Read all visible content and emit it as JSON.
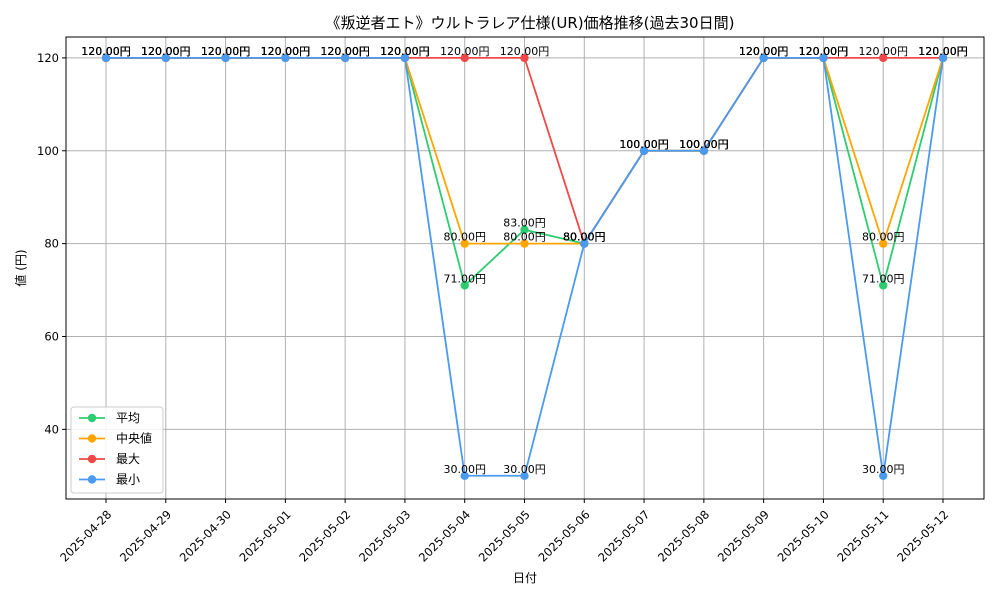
{
  "chart_data": {
    "type": "line",
    "title": "《叛逆者エト》ウルトラレア仕様(UR)価格推移(過去30日間)",
    "xlabel": "日付",
    "ylabel": "値 (円)",
    "ylim": [
      25,
      124.5
    ],
    "yticks": [
      40,
      60,
      80,
      100,
      120
    ],
    "grid": true,
    "legend_position": "lower-left",
    "label_suffix": "円",
    "categories": [
      "2025-04-28",
      "2025-04-29",
      "2025-04-30",
      "2025-05-01",
      "2025-05-02",
      "2025-05-03",
      "2025-05-04",
      "2025-05-05",
      "2025-05-06",
      "2025-05-07",
      "2025-05-08",
      "2025-05-09",
      "2025-05-10",
      "2025-05-11",
      "2025-05-12"
    ],
    "series": [
      {
        "name": "平均",
        "color": "#2ecc71",
        "values": [
          120,
          120,
          120,
          120,
          120,
          120,
          71,
          83,
          80,
          100,
          100,
          120,
          120,
          71,
          120
        ]
      },
      {
        "name": "中央値",
        "color": "#ffa500",
        "values": [
          120,
          120,
          120,
          120,
          120,
          120,
          80,
          80,
          80,
          100,
          100,
          120,
          120,
          80,
          120
        ]
      },
      {
        "name": "最大",
        "color": "#f04848",
        "values": [
          120,
          120,
          120,
          120,
          120,
          120,
          120,
          120,
          80,
          100,
          100,
          120,
          120,
          120,
          120
        ]
      },
      {
        "name": "最小",
        "color": "#4a9af0",
        "values": [
          120,
          120,
          120,
          120,
          120,
          120,
          30,
          30,
          80,
          100,
          100,
          120,
          120,
          30,
          120
        ]
      }
    ]
  }
}
